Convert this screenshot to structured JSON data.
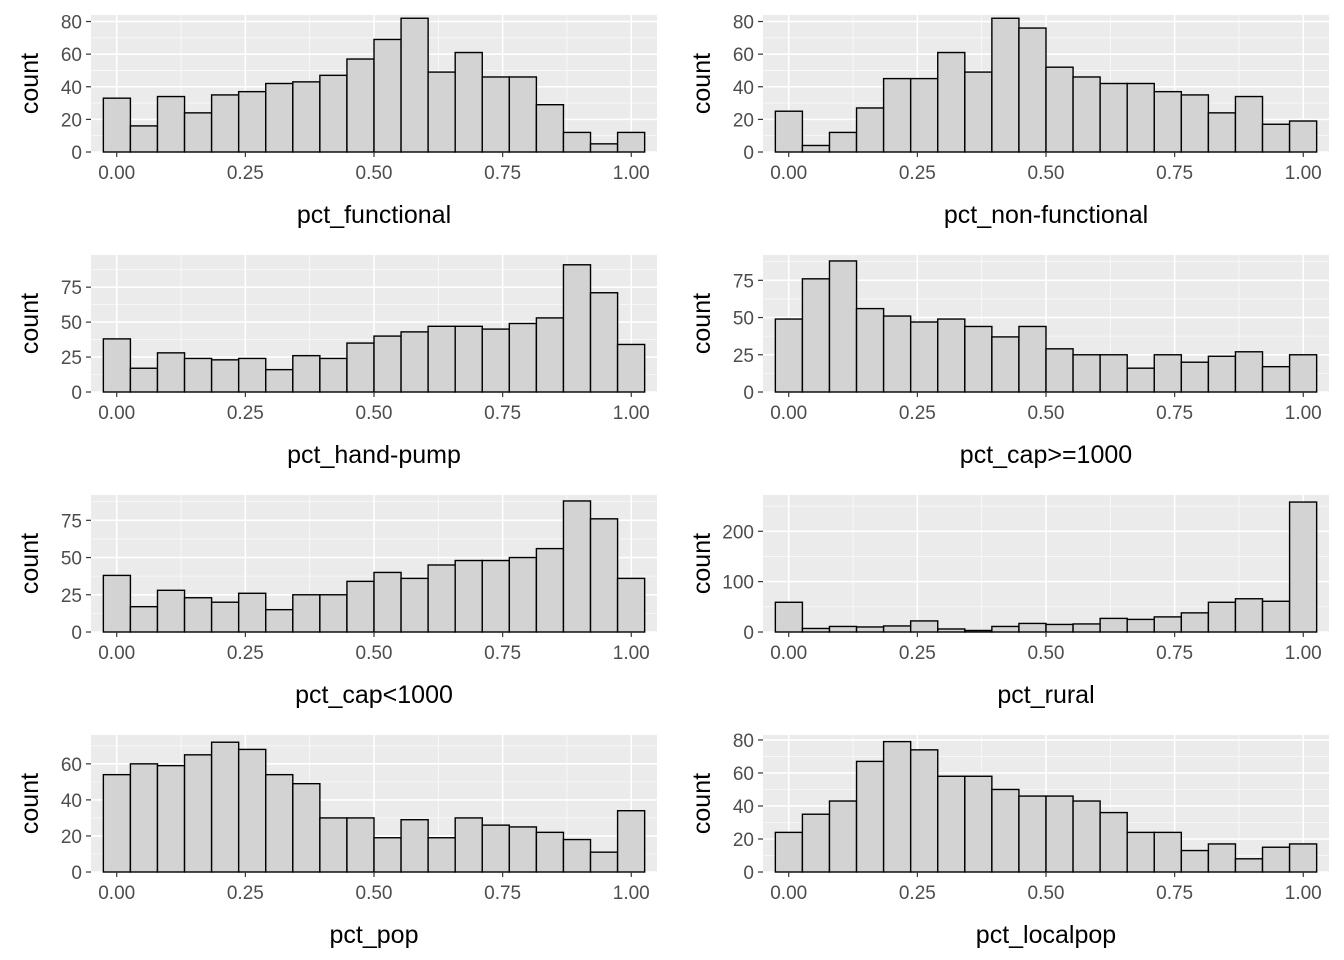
{
  "style": {
    "panel_bg": "#ebebeb",
    "grid_major": "#ffffff",
    "bar_fill": "#d3d3d3",
    "bar_stroke": "#000000",
    "tick_text": "#4d4d4d"
  },
  "chart_data": [
    {
      "type": "bar",
      "xlabel": "pct_functional",
      "ylabel": "count",
      "xlim": [
        -0.05,
        1.05
      ],
      "ylim": [
        0,
        84
      ],
      "x_ticks": [
        0.0,
        0.25,
        0.5,
        0.75,
        1.0
      ],
      "x_tick_labels": [
        "0.00",
        "0.25",
        "0.50",
        "0.75",
        "1.00"
      ],
      "y_ticks": [
        0,
        20,
        40,
        60,
        80
      ],
      "y_tick_labels": [
        "0",
        "20",
        "40",
        "60",
        "80"
      ],
      "bin_start": -0.026,
      "bin_width": 0.0526,
      "values": [
        33,
        16,
        34,
        24,
        35,
        37,
        42,
        43,
        47,
        57,
        69,
        82,
        49,
        61,
        46,
        46,
        29,
        12,
        5,
        12
      ],
      "grid": true
    },
    {
      "type": "bar",
      "xlabel": "pct_non-functional",
      "ylabel": "count",
      "xlim": [
        -0.05,
        1.05
      ],
      "ylim": [
        0,
        84
      ],
      "x_ticks": [
        0.0,
        0.25,
        0.5,
        0.75,
        1.0
      ],
      "x_tick_labels": [
        "0.00",
        "0.25",
        "0.50",
        "0.75",
        "1.00"
      ],
      "y_ticks": [
        0,
        20,
        40,
        60,
        80
      ],
      "y_tick_labels": [
        "0",
        "20",
        "40",
        "60",
        "80"
      ],
      "bin_start": -0.026,
      "bin_width": 0.0526,
      "values": [
        25,
        4,
        12,
        27,
        45,
        45,
        61,
        49,
        82,
        76,
        52,
        46,
        42,
        42,
        37,
        35,
        24,
        34,
        17,
        19
      ],
      "grid": true
    },
    {
      "type": "bar",
      "xlabel": "pct_hand-pump",
      "ylabel": "count",
      "xlim": [
        -0.05,
        1.05
      ],
      "ylim": [
        0,
        98
      ],
      "x_ticks": [
        0.0,
        0.25,
        0.5,
        0.75,
        1.0
      ],
      "x_tick_labels": [
        "0.00",
        "0.25",
        "0.50",
        "0.75",
        "1.00"
      ],
      "y_ticks": [
        0,
        25,
        50,
        75
      ],
      "y_tick_labels": [
        "0",
        "25",
        "50",
        "75"
      ],
      "bin_start": -0.026,
      "bin_width": 0.0526,
      "values": [
        38,
        17,
        28,
        24,
        23,
        24,
        16,
        26,
        24,
        35,
        40,
        43,
        47,
        47,
        45,
        49,
        53,
        91,
        71,
        34
      ],
      "grid": true
    },
    {
      "type": "bar",
      "xlabel": "pct_cap>=1000",
      "ylabel": "count",
      "xlim": [
        -0.05,
        1.05
      ],
      "ylim": [
        0,
        92
      ],
      "x_ticks": [
        0.0,
        0.25,
        0.5,
        0.75,
        1.0
      ],
      "x_tick_labels": [
        "0.00",
        "0.25",
        "0.50",
        "0.75",
        "1.00"
      ],
      "y_ticks": [
        0,
        25,
        50,
        75
      ],
      "y_tick_labels": [
        "0",
        "25",
        "50",
        "75"
      ],
      "bin_start": -0.026,
      "bin_width": 0.0526,
      "values": [
        49,
        76,
        88,
        56,
        51,
        47,
        49,
        44,
        37,
        44,
        29,
        25,
        25,
        16,
        25,
        20,
        24,
        27,
        17,
        25
      ],
      "grid": true
    },
    {
      "type": "bar",
      "xlabel": "pct_cap<1000",
      "ylabel": "count",
      "xlim": [
        -0.05,
        1.05
      ],
      "ylim": [
        0,
        92
      ],
      "x_ticks": [
        0.0,
        0.25,
        0.5,
        0.75,
        1.0
      ],
      "x_tick_labels": [
        "0.00",
        "0.25",
        "0.50",
        "0.75",
        "1.00"
      ],
      "y_ticks": [
        0,
        25,
        50,
        75
      ],
      "y_tick_labels": [
        "0",
        "25",
        "50",
        "75"
      ],
      "bin_start": -0.026,
      "bin_width": 0.0526,
      "values": [
        38,
        17,
        28,
        23,
        20,
        26,
        15,
        25,
        25,
        34,
        40,
        36,
        45,
        48,
        48,
        50,
        56,
        88,
        76,
        36
      ],
      "grid": true
    },
    {
      "type": "bar",
      "xlabel": "pct_rural",
      "ylabel": "count",
      "xlim": [
        -0.05,
        1.05
      ],
      "ylim": [
        0,
        272
      ],
      "x_ticks": [
        0.0,
        0.25,
        0.5,
        0.75,
        1.0
      ],
      "x_tick_labels": [
        "0.00",
        "0.25",
        "0.50",
        "0.75",
        "1.00"
      ],
      "y_ticks": [
        0,
        100,
        200
      ],
      "y_tick_labels": [
        "0",
        "100",
        "200"
      ],
      "bin_start": -0.026,
      "bin_width": 0.0526,
      "values": [
        59,
        7,
        11,
        10,
        12,
        22,
        6,
        3,
        11,
        17,
        15,
        16,
        27,
        25,
        30,
        38,
        59,
        66,
        61,
        258
      ],
      "grid": true
    },
    {
      "type": "bar",
      "xlabel": "pct_pop",
      "ylabel": "count",
      "xlim": [
        -0.05,
        1.05
      ],
      "ylim": [
        0,
        76
      ],
      "x_ticks": [
        0.0,
        0.25,
        0.5,
        0.75,
        1.0
      ],
      "x_tick_labels": [
        "0.00",
        "0.25",
        "0.50",
        "0.75",
        "1.00"
      ],
      "y_ticks": [
        0,
        20,
        40,
        60
      ],
      "y_tick_labels": [
        "0",
        "20",
        "40",
        "60"
      ],
      "bin_start": -0.026,
      "bin_width": 0.0526,
      "values": [
        54,
        60,
        59,
        65,
        72,
        68,
        54,
        49,
        30,
        30,
        19,
        29,
        19,
        30,
        26,
        25,
        22,
        18,
        11,
        34
      ],
      "grid": true
    },
    {
      "type": "bar",
      "xlabel": "pct_localpop",
      "ylabel": "count",
      "xlim": [
        -0.05,
        1.05
      ],
      "ylim": [
        0,
        83
      ],
      "x_ticks": [
        0.0,
        0.25,
        0.5,
        0.75,
        1.0
      ],
      "x_tick_labels": [
        "0.00",
        "0.25",
        "0.50",
        "0.75",
        "1.00"
      ],
      "y_ticks": [
        0,
        20,
        40,
        60,
        80
      ],
      "y_tick_labels": [
        "0",
        "20",
        "40",
        "60",
        "80"
      ],
      "bin_start": -0.026,
      "bin_width": 0.0526,
      "values": [
        24,
        35,
        43,
        67,
        79,
        74,
        58,
        58,
        50,
        46,
        46,
        43,
        36,
        24,
        24,
        13,
        17,
        8,
        15,
        17
      ],
      "grid": true
    }
  ]
}
